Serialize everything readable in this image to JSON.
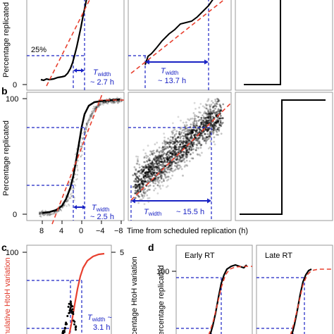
{
  "figure": {
    "panel_labels": [
      "b",
      "c",
      "d"
    ],
    "shared_x_label": "Time from scheduled replication (h)",
    "colors": {
      "data": "#000000",
      "fit": "#e8402f",
      "guide": "#1a23c4",
      "frame": "#999999"
    }
  },
  "chart_data": [
    {
      "panel": "a-left",
      "type": "line",
      "ylabel": "Percentage replicated",
      "y_ticks": [
        "0"
      ],
      "annotations": [
        "25%",
        "T",
        "width",
        "~ 2.7 h"
      ],
      "series": [
        {
          "name": "",
          "x": [
            6,
            5,
            4,
            3,
            2,
            1.5,
            1,
            0.5,
            0
          ],
          "y": [
            3,
            4,
            5,
            12,
            30,
            45,
            60,
            75,
            88
          ]
        }
      ]
    },
    {
      "panel": "a-mid",
      "type": "line",
      "annotations": [
        "T",
        "width",
        "~ 13.7 h"
      ],
      "series": [
        {
          "name": "",
          "x": [
            1,
            0,
            -2,
            -4,
            -6,
            -8
          ],
          "y": [
            12,
            28,
            50,
            60,
            70,
            88
          ]
        }
      ]
    },
    {
      "panel": "a-right",
      "type": "line",
      "series": [
        {
          "name": "",
          "x": [
            1,
            0,
            0,
            -1
          ],
          "y": [
            0,
            0,
            100,
            100
          ]
        }
      ]
    },
    {
      "panel": "b-left",
      "type": "scatter",
      "ylabel": "Percentage replicated",
      "y_ticks": [
        "100",
        "0"
      ],
      "x_ticks": [
        "8",
        "4",
        "0",
        "−4",
        "−8"
      ],
      "annotations": [
        "T",
        "width",
        "~ 2.5 h"
      ],
      "series": [
        {
          "name": "",
          "x": [
            8,
            6,
            4,
            3,
            2,
            1,
            0,
            -1,
            -2,
            -4,
            -6,
            -8
          ],
          "y": [
            1,
            2,
            4,
            10,
            25,
            45,
            70,
            88,
            95,
            98,
            99,
            100
          ]
        }
      ]
    },
    {
      "panel": "b-mid",
      "type": "scatter",
      "annotations": [
        "T",
        "width",
        "~ 15.5 h"
      ]
    },
    {
      "panel": "b-right",
      "type": "line",
      "series": [
        {
          "name": "",
          "x": [
            1,
            0,
            0,
            -1
          ],
          "y": [
            0,
            0,
            100,
            100
          ]
        }
      ]
    },
    {
      "panel": "c",
      "type": "line",
      "ylabel": "nulative HtoH variation",
      "y2label": "centage HtoH variation",
      "y_ticks": [
        "100"
      ],
      "y2_ticks": [
        "5"
      ],
      "annotations": [
        "T",
        "width",
        "~",
        "3.1 h"
      ]
    },
    {
      "panel": "d-early",
      "type": "line",
      "title": "Early RT",
      "ylabel": "ercentage replicated",
      "y_ticks": [
        "100"
      ]
    },
    {
      "panel": "d-late",
      "type": "line",
      "title": "Late RT"
    }
  ]
}
